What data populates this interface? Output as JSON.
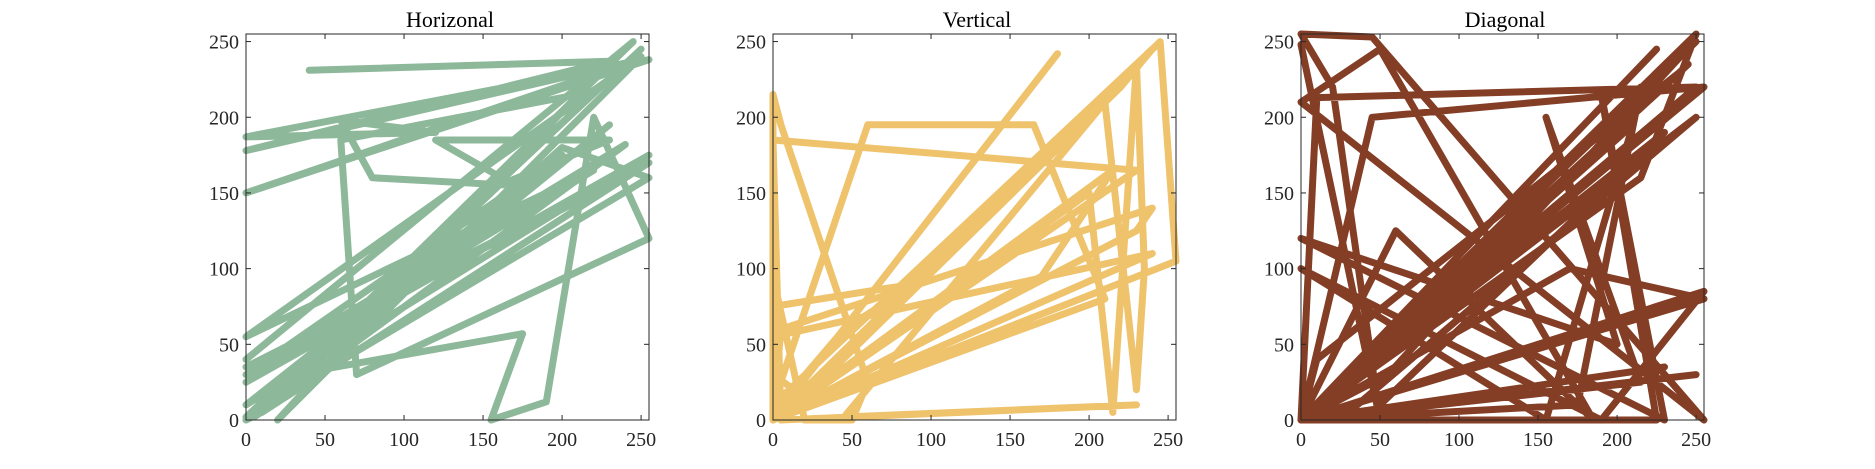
{
  "chart_data": [
    {
      "type": "line",
      "title": "Horizonal",
      "xlabel": "",
      "ylabel": "",
      "xlim": [
        0,
        255
      ],
      "ylim": [
        0,
        255
      ],
      "x_ticks": [
        0,
        50,
        100,
        150,
        200,
        250
      ],
      "y_ticks": [
        0,
        50,
        100,
        150,
        200,
        250
      ],
      "grid": false,
      "color": "#8db89a",
      "series": [
        {
          "x": [
            40,
            230,
            0,
            245,
            0,
            255,
            0,
            120,
            60,
            80,
            170,
            120,
            230,
            160,
            5,
            120,
            200,
            255,
            0,
            250,
            0,
            230,
            30,
            175,
            155,
            190,
            220,
            255,
            70,
            60,
            210,
            20,
            250,
            0,
            220,
            0,
            255,
            0,
            200,
            0,
            240,
            5,
            255,
            0,
            240,
            10,
            0,
            245,
            0
          ],
          "y": [
            231,
            237,
            178,
            237,
            150,
            238,
            187,
            190,
            198,
            160,
            155,
            185,
            185,
            155,
            2,
            105,
            180,
            160,
            2,
            245,
            0,
            195,
            30,
            57,
            0,
            12,
            200,
            120,
            30,
            185,
            215,
            0,
            240,
            55,
            165,
            25,
            175,
            10,
            175,
            30,
            182,
            2,
            170,
            35,
            160,
            5,
            0,
            250,
            40
          ]
        }
      ]
    },
    {
      "type": "line",
      "title": "Vertical",
      "xlabel": "",
      "ylabel": "",
      "xlim": [
        0,
        255
      ],
      "ylim": [
        0,
        255
      ],
      "x_ticks": [
        0,
        50,
        100,
        150,
        200,
        250
      ],
      "y_ticks": [
        0,
        50,
        100,
        150,
        200,
        250
      ],
      "grid": false,
      "color": "#efc26c",
      "series": [
        {
          "x": [
            180,
            0,
            0,
            5,
            60,
            50,
            20,
            0,
            0,
            90,
            45,
            0,
            0,
            240,
            0,
            0,
            20,
            200,
            215,
            230,
            235,
            230,
            210,
            45,
            230,
            5,
            0,
            230,
            0,
            255,
            245,
            0,
            10,
            220,
            240,
            0,
            60,
            165,
            210,
            0,
            5,
            240,
            230,
            0,
            215,
            170,
            0
          ],
          "y": [
            242,
            0,
            215,
            195,
            25,
            0,
            0,
            95,
            75,
            90,
            60,
            5,
            0,
            110,
            55,
            30,
            15,
            150,
            5,
            235,
            100,
            20,
            210,
            2,
            10,
            0,
            185,
            165,
            0,
            105,
            250,
            0,
            5,
            220,
            245,
            10,
            195,
            195,
            80,
            0,
            60,
            140,
            125,
            0,
            165,
            95,
            0
          ]
        }
      ]
    },
    {
      "type": "line",
      "title": "Diagonal",
      "xlabel": "",
      "ylabel": "",
      "xlim": [
        0,
        255
      ],
      "ylim": [
        0,
        255
      ],
      "x_ticks": [
        0,
        50,
        100,
        150,
        200,
        250
      ],
      "y_ticks": [
        0,
        50,
        100,
        150,
        200,
        250
      ],
      "grid": false,
      "color": "#843e26",
      "series": [
        {
          "x": [
            0,
            50,
            20,
            0,
            45,
            255,
            0,
            50,
            185,
            60,
            0,
            240,
            55,
            0,
            250,
            10,
            0,
            45,
            255,
            0,
            230,
            40,
            0,
            255,
            190,
            0,
            155,
            210,
            0,
            225,
            190,
            230,
            0,
            200,
            155,
            215,
            0,
            250,
            0,
            10,
            240,
            0,
            250,
            30,
            0,
            225,
            0,
            255,
            170,
            0,
            175,
            215,
            0,
            245,
            0,
            100,
            0,
            245,
            0,
            230,
            0,
            250,
            215,
            0,
            250,
            0
          ],
          "y": [
            248,
            0,
            220,
            255,
            253,
            0,
            210,
            245,
            0,
            125,
            0,
            240,
            30,
            0,
            220,
            213,
            0,
            200,
            220,
            0,
            190,
            0,
            0,
            85,
            0,
            100,
            0,
            195,
            0,
            0,
            215,
            0,
            120,
            50,
            200,
            25,
            0,
            250,
            0,
            40,
            230,
            0,
            200,
            5,
            0,
            245,
            0,
            80,
            100,
            0,
            10,
            220,
            0,
            245,
            0,
            95,
            0,
            235,
            0,
            35,
            0,
            255,
            160,
            0,
            30,
            0
          ]
        }
      ]
    }
  ]
}
